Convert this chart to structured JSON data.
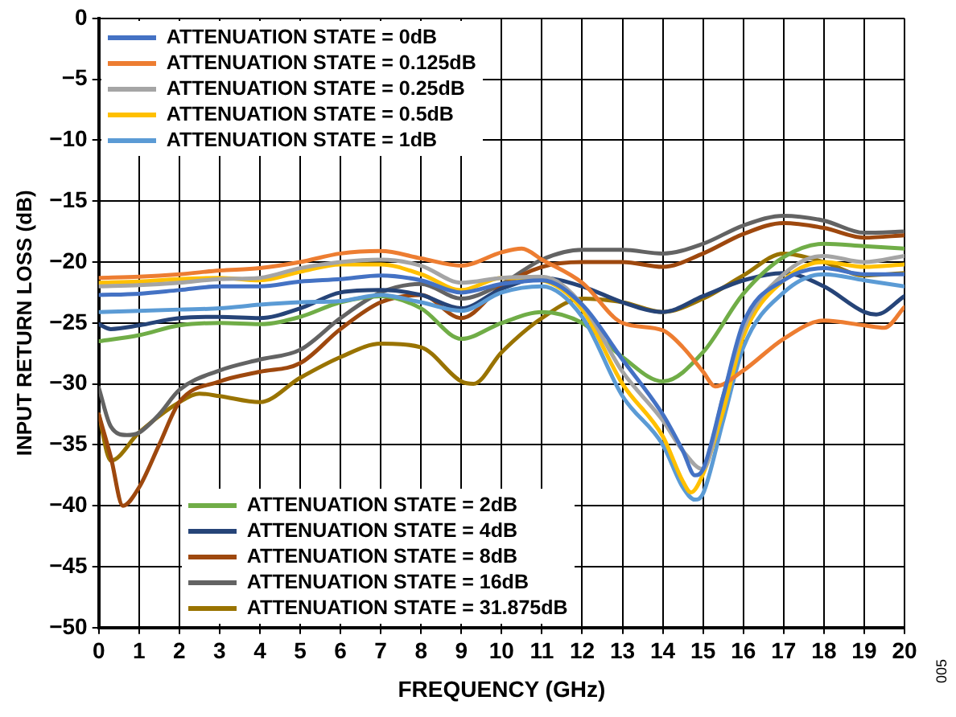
{
  "chart_data": {
    "type": "line",
    "xlabel": "FREQUENCY (GHz)",
    "ylabel": "INPUT RETURN LOSS (dB)",
    "xlim": [
      0,
      20
    ],
    "ylim": [
      -50,
      0
    ],
    "xticks": [
      0,
      1,
      2,
      3,
      4,
      5,
      6,
      7,
      8,
      9,
      10,
      11,
      12,
      13,
      14,
      15,
      16,
      17,
      18,
      19,
      20
    ],
    "yticks": [
      -50,
      -45,
      -40,
      -35,
      -30,
      -25,
      -20,
      -15,
      -10,
      -5,
      0
    ],
    "grid": true,
    "legend": "top left",
    "marker": "none",
    "line_style": "solid",
    "annotations": [
      "005"
    ],
    "series": [
      {
        "name": "ATTENUATION STATE = 0dB",
        "color": "#4472c4",
        "x": [
          0,
          1,
          2,
          3,
          4,
          5,
          6,
          7,
          8,
          9,
          10,
          11,
          12,
          13,
          14,
          14.5,
          14.8,
          15,
          15.5,
          16,
          17,
          18,
          19,
          20
        ],
        "values": [
          -22.7,
          -22.6,
          -22.3,
          -22,
          -22,
          -21.6,
          -21.4,
          -21.1,
          -21.5,
          -22.5,
          -21.8,
          -21.5,
          -23.5,
          -28,
          -32.5,
          -35.5,
          -37.5,
          -37,
          -31,
          -25,
          -21.5,
          -20.5,
          -21,
          -21
        ]
      },
      {
        "name": "ATTENUATION STATE = 0.125dB",
        "color": "#ed7d31",
        "x": [
          0,
          1,
          2,
          3,
          4,
          5,
          6,
          7,
          8,
          9,
          10,
          10.5,
          11,
          12,
          13,
          14,
          14.5,
          15,
          15.3,
          16,
          17,
          18,
          19,
          19.5,
          20
        ],
        "values": [
          -21.3,
          -21.2,
          -21,
          -20.7,
          -20.5,
          -20,
          -19.3,
          -19.1,
          -19.7,
          -20.3,
          -19.2,
          -18.9,
          -19.8,
          -21.7,
          -25,
          -25.6,
          -27,
          -29,
          -30.2,
          -28.9,
          -26.3,
          -24.8,
          -25.2,
          -25.4,
          -23.7
        ]
      },
      {
        "name": "ATTENUATION STATE = 0.25dB",
        "color": "#a5a5a5",
        "x": [
          0,
          1,
          2,
          3,
          4,
          5,
          6,
          7,
          8,
          9,
          10,
          11,
          12,
          13,
          14,
          14.5,
          15,
          15.5,
          16,
          17,
          18,
          19,
          20
        ],
        "values": [
          -22,
          -21.9,
          -21.7,
          -21.4,
          -21.3,
          -20.5,
          -20,
          -19.8,
          -20.3,
          -21.7,
          -21.3,
          -21.2,
          -23.5,
          -29,
          -33,
          -35.5,
          -37,
          -31,
          -25.5,
          -21,
          -19.5,
          -20,
          -19.5
        ]
      },
      {
        "name": "ATTENUATION STATE = 0.5dB",
        "color": "#ffc000",
        "x": [
          0,
          1,
          2,
          3,
          4,
          5,
          6,
          7,
          8,
          9,
          10,
          11,
          12,
          13,
          14,
          14.5,
          14.7,
          15,
          15.5,
          16,
          17,
          18,
          19,
          20
        ],
        "values": [
          -21.7,
          -21.6,
          -21.4,
          -21.3,
          -21.5,
          -20.8,
          -20.2,
          -20.2,
          -21,
          -22.3,
          -21.3,
          -21.5,
          -23.9,
          -30,
          -34.3,
          -38,
          -38.9,
          -37.4,
          -32.2,
          -26.1,
          -21.5,
          -20,
          -20.4,
          -20.2
        ]
      },
      {
        "name": "ATTENUATION STATE = 1dB",
        "color": "#5b9bd5",
        "x": [
          0,
          1,
          2,
          3,
          4,
          5,
          6,
          7,
          8,
          9,
          10,
          11,
          12,
          13,
          14,
          14.5,
          14.8,
          15,
          15.5,
          16,
          17,
          18,
          19,
          20
        ],
        "values": [
          -24.1,
          -24,
          -23.9,
          -23.8,
          -23.5,
          -23.3,
          -23.2,
          -22.7,
          -23.3,
          -24,
          -22.5,
          -22,
          -24.5,
          -31,
          -35,
          -38.5,
          -39.5,
          -39,
          -33,
          -27,
          -22.5,
          -21,
          -21.5,
          -22
        ]
      },
      {
        "name": "ATTENUATION STATE = 2dB",
        "color": "#70ad47",
        "x": [
          0,
          1,
          2,
          3,
          4,
          5,
          6,
          7,
          8,
          9,
          10,
          11,
          12,
          13,
          14,
          15,
          16,
          17,
          18,
          19,
          20
        ],
        "values": [
          -26.5,
          -26,
          -25.2,
          -25,
          -25.1,
          -24.5,
          -23.3,
          -22.8,
          -23.8,
          -26.3,
          -25,
          -24.1,
          -25,
          -27.8,
          -29.8,
          -27.4,
          -22.6,
          -19.6,
          -18.5,
          -18.7,
          -18.9
        ]
      },
      {
        "name": "ATTENUATION STATE = 4dB",
        "color": "#264478",
        "x": [
          0,
          0.3,
          1,
          2,
          3,
          4,
          5,
          6,
          7,
          8,
          9,
          10,
          11,
          12,
          13,
          14,
          15,
          16,
          17,
          18,
          19,
          19.3,
          20
        ],
        "values": [
          -25.1,
          -25.5,
          -25.2,
          -24.6,
          -24.5,
          -24.6,
          -23.8,
          -22.5,
          -22.3,
          -22.7,
          -23.8,
          -22.2,
          -21.3,
          -22,
          -23.3,
          -24.1,
          -22.8,
          -21.5,
          -20.9,
          -22,
          -24.1,
          -24.3,
          -22.8
        ]
      },
      {
        "name": "ATTENUATION STATE = 8dB",
        "color": "#9e480e",
        "x": [
          0,
          0.3,
          0.6,
          1,
          1.5,
          2,
          3,
          4,
          5,
          6,
          7,
          8,
          9,
          10,
          11,
          12,
          13,
          14,
          15,
          16,
          17,
          18,
          19,
          20
        ],
        "values": [
          -32.5,
          -36,
          -40,
          -38.5,
          -35,
          -31.5,
          -29.8,
          -29,
          -28.3,
          -25.5,
          -23.3,
          -22.7,
          -24.6,
          -22,
          -20.4,
          -20,
          -20,
          -20.4,
          -19.3,
          -17.7,
          -16.8,
          -17.2,
          -18,
          -17.8
        ]
      },
      {
        "name": "ATTENUATION STATE = 16dB",
        "color": "#636363",
        "x": [
          0,
          0.3,
          0.7,
          1,
          1.5,
          2,
          3,
          4,
          5,
          6,
          7,
          8,
          9,
          10,
          11,
          12,
          13,
          14,
          15,
          16,
          17,
          18,
          19,
          20
        ],
        "values": [
          -30.3,
          -33.5,
          -34.2,
          -34,
          -32.5,
          -30.5,
          -28.9,
          -28,
          -27.2,
          -24.6,
          -22.5,
          -21.8,
          -23,
          -21.8,
          -19.8,
          -19,
          -19,
          -19.3,
          -18.5,
          -17,
          -16.2,
          -16.6,
          -17.6,
          -17.5
        ]
      },
      {
        "name": "ATTENUATION STATE = 31.875dB",
        "color": "#997300",
        "x": [
          0,
          0.3,
          1,
          2,
          2.5,
          3,
          4,
          5,
          6,
          7,
          8,
          9,
          9.3,
          10,
          11,
          12,
          13,
          14,
          15,
          16,
          17,
          18,
          19,
          20
        ],
        "values": [
          -32.5,
          -36.3,
          -34,
          -31.5,
          -30.8,
          -31,
          -31.5,
          -29.5,
          -27.8,
          -26.7,
          -27,
          -29.8,
          -30,
          -27.4,
          -24.6,
          -23,
          -23.3,
          -24.1,
          -23,
          -21.1,
          -19.3,
          -20,
          -21.1,
          -20.9
        ]
      }
    ]
  }
}
